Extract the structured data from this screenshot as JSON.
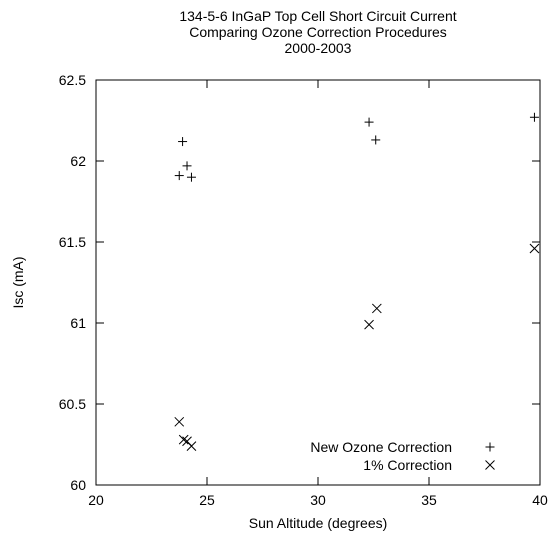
{
  "chart_data": {
    "type": "scatter",
    "title": [
      "134-5-6 InGaP Top Cell Short Circuit Current",
      "Comparing Ozone Correction Procedures",
      "2000-2003"
    ],
    "xlabel": "Sun Altitude (degrees)",
    "ylabel": "Isc (mA)",
    "xlim": [
      20,
      40
    ],
    "ylim": [
      60,
      62.5
    ],
    "xticks": [
      20,
      25,
      30,
      35,
      40
    ],
    "yticks": [
      60,
      60.5,
      61,
      61.5,
      62,
      62.5
    ],
    "xtick_labels": [
      "20",
      "25",
      "30",
      "35",
      "40"
    ],
    "ytick_labels": [
      "60",
      "60.5",
      "61",
      "61.5",
      "62",
      "62.5"
    ],
    "grid": false,
    "legend_position": "bottom-right",
    "series": [
      {
        "name": "New Ozone Correction",
        "marker": "plus",
        "color": "#000000",
        "points": [
          {
            "x": 23.9,
            "y": 62.12
          },
          {
            "x": 24.1,
            "y": 61.97
          },
          {
            "x": 23.75,
            "y": 61.91
          },
          {
            "x": 24.3,
            "y": 61.9
          },
          {
            "x": 32.3,
            "y": 62.24
          },
          {
            "x": 32.6,
            "y": 62.13
          },
          {
            "x": 39.75,
            "y": 62.27
          }
        ]
      },
      {
        "name": "1% Correction",
        "marker": "cross",
        "color": "#000000",
        "points": [
          {
            "x": 23.75,
            "y": 60.39
          },
          {
            "x": 23.95,
            "y": 60.28
          },
          {
            "x": 24.1,
            "y": 60.27
          },
          {
            "x": 24.3,
            "y": 60.24
          },
          {
            "x": 32.3,
            "y": 60.99
          },
          {
            "x": 32.65,
            "y": 61.09
          },
          {
            "x": 39.75,
            "y": 61.46
          }
        ]
      }
    ]
  }
}
